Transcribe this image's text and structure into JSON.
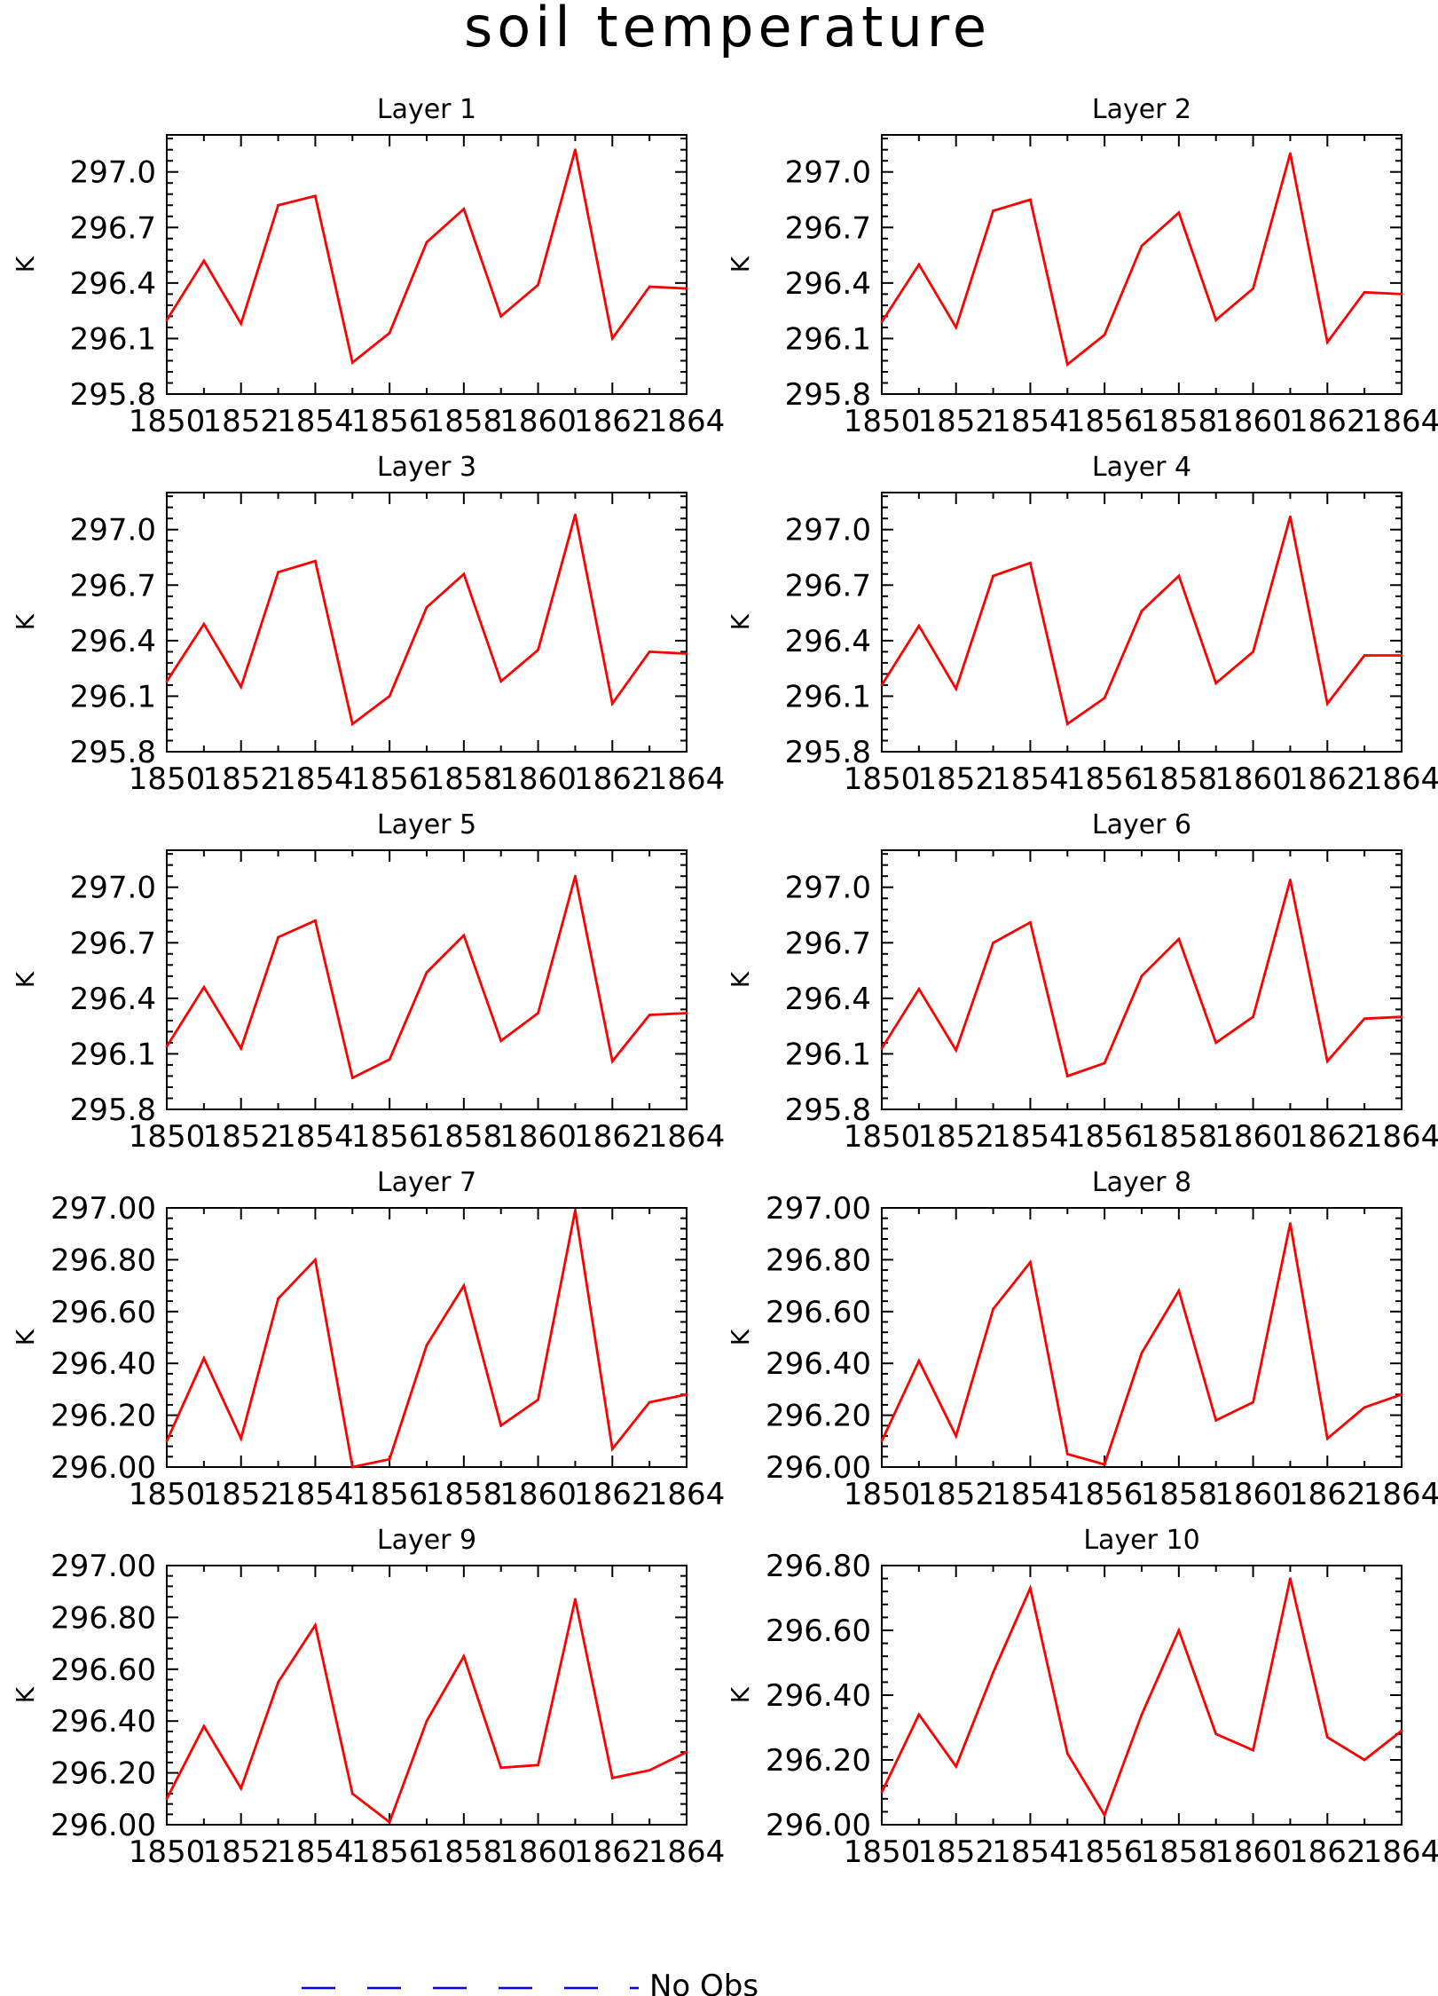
{
  "title": "soil temperature",
  "legend": {
    "label": "No Obs",
    "line_color": "#0000ff",
    "line_style": "dashed"
  },
  "colors": {
    "series": "#ff0000",
    "axes": "#000000"
  },
  "chart_data": [
    {
      "type": "line",
      "title": "Layer 1",
      "ylabel": "K",
      "x": [
        1850,
        1851,
        1852,
        1853,
        1854,
        1855,
        1856,
        1857,
        1858,
        1859,
        1860,
        1861,
        1862,
        1863,
        1864
      ],
      "xticks": [
        "1850",
        "1852",
        "1854",
        "1856",
        "1858",
        "1860",
        "1862",
        "1864"
      ],
      "xlim": [
        1850,
        1864
      ],
      "ylim": [
        295.8,
        297.2
      ],
      "yticks": [
        "295.8",
        "296.1",
        "296.4",
        "296.7",
        "297.0"
      ],
      "series": [
        {
          "values": [
            296.2,
            296.52,
            296.18,
            296.82,
            296.87,
            295.97,
            296.13,
            296.62,
            296.8,
            296.22,
            296.39,
            297.12,
            296.1,
            296.38,
            296.37
          ]
        }
      ]
    },
    {
      "type": "line",
      "title": "Layer 2",
      "ylabel": "K",
      "x": [
        1850,
        1851,
        1852,
        1853,
        1854,
        1855,
        1856,
        1857,
        1858,
        1859,
        1860,
        1861,
        1862,
        1863,
        1864
      ],
      "xticks": [
        "1850",
        "1852",
        "1854",
        "1856",
        "1858",
        "1860",
        "1862",
        "1864"
      ],
      "xlim": [
        1850,
        1864
      ],
      "ylim": [
        295.8,
        297.2
      ],
      "yticks": [
        "295.8",
        "296.1",
        "296.4",
        "296.7",
        "297.0"
      ],
      "series": [
        {
          "values": [
            296.19,
            296.5,
            296.16,
            296.79,
            296.85,
            295.96,
            296.12,
            296.6,
            296.78,
            296.2,
            296.37,
            297.1,
            296.08,
            296.35,
            296.34
          ]
        }
      ]
    },
    {
      "type": "line",
      "title": "Layer 3",
      "ylabel": "K",
      "x": [
        1850,
        1851,
        1852,
        1853,
        1854,
        1855,
        1856,
        1857,
        1858,
        1859,
        1860,
        1861,
        1862,
        1863,
        1864
      ],
      "xticks": [
        "1850",
        "1852",
        "1854",
        "1856",
        "1858",
        "1860",
        "1862",
        "1864"
      ],
      "xlim": [
        1850,
        1864
      ],
      "ylim": [
        295.8,
        297.2
      ],
      "yticks": [
        "295.8",
        "296.1",
        "296.4",
        "296.7",
        "297.0"
      ],
      "series": [
        {
          "values": [
            296.18,
            296.49,
            296.15,
            296.77,
            296.83,
            295.95,
            296.1,
            296.58,
            296.76,
            296.18,
            296.35,
            297.08,
            296.06,
            296.34,
            296.33
          ]
        }
      ]
    },
    {
      "type": "line",
      "title": "Layer 4",
      "ylabel": "K",
      "x": [
        1850,
        1851,
        1852,
        1853,
        1854,
        1855,
        1856,
        1857,
        1858,
        1859,
        1860,
        1861,
        1862,
        1863,
        1864
      ],
      "xticks": [
        "1850",
        "1852",
        "1854",
        "1856",
        "1858",
        "1860",
        "1862",
        "1864"
      ],
      "xlim": [
        1850,
        1864
      ],
      "ylim": [
        295.8,
        297.2
      ],
      "yticks": [
        "295.8",
        "296.1",
        "296.4",
        "296.7",
        "297.0"
      ],
      "series": [
        {
          "values": [
            296.16,
            296.48,
            296.14,
            296.75,
            296.82,
            295.95,
            296.09,
            296.56,
            296.75,
            296.17,
            296.34,
            297.07,
            296.06,
            296.32,
            296.32
          ]
        }
      ]
    },
    {
      "type": "line",
      "title": "Layer 5",
      "ylabel": "K",
      "x": [
        1850,
        1851,
        1852,
        1853,
        1854,
        1855,
        1856,
        1857,
        1858,
        1859,
        1860,
        1861,
        1862,
        1863,
        1864
      ],
      "xticks": [
        "1850",
        "1852",
        "1854",
        "1856",
        "1858",
        "1860",
        "1862",
        "1864"
      ],
      "xlim": [
        1850,
        1864
      ],
      "ylim": [
        295.8,
        297.2
      ],
      "yticks": [
        "295.8",
        "296.1",
        "296.4",
        "296.7",
        "297.0"
      ],
      "series": [
        {
          "values": [
            296.14,
            296.46,
            296.13,
            296.73,
            296.82,
            295.97,
            296.07,
            296.54,
            296.74,
            296.17,
            296.32,
            297.06,
            296.06,
            296.31,
            296.32
          ]
        }
      ]
    },
    {
      "type": "line",
      "title": "Layer 6",
      "ylabel": "K",
      "x": [
        1850,
        1851,
        1852,
        1853,
        1854,
        1855,
        1856,
        1857,
        1858,
        1859,
        1860,
        1861,
        1862,
        1863,
        1864
      ],
      "xticks": [
        "1850",
        "1852",
        "1854",
        "1856",
        "1858",
        "1860",
        "1862",
        "1864"
      ],
      "xlim": [
        1850,
        1864
      ],
      "ylim": [
        295.8,
        297.2
      ],
      "yticks": [
        "295.8",
        "296.1",
        "296.4",
        "296.7",
        "297.0"
      ],
      "series": [
        {
          "values": [
            296.13,
            296.45,
            296.12,
            296.7,
            296.81,
            295.98,
            296.05,
            296.52,
            296.72,
            296.16,
            296.3,
            297.04,
            296.06,
            296.29,
            296.3
          ]
        }
      ]
    },
    {
      "type": "line",
      "title": "Layer 7",
      "ylabel": "K",
      "x": [
        1850,
        1851,
        1852,
        1853,
        1854,
        1855,
        1856,
        1857,
        1858,
        1859,
        1860,
        1861,
        1862,
        1863,
        1864
      ],
      "xticks": [
        "1850",
        "1852",
        "1854",
        "1856",
        "1858",
        "1860",
        "1862",
        "1864"
      ],
      "xlim": [
        1850,
        1864
      ],
      "ylim": [
        296.0,
        297.0
      ],
      "yticks": [
        "296.00",
        "296.20",
        "296.40",
        "296.60",
        "296.80",
        "297.00"
      ],
      "series": [
        {
          "values": [
            296.1,
            296.42,
            296.11,
            296.65,
            296.8,
            296.0,
            296.03,
            296.47,
            296.7,
            296.16,
            296.26,
            296.99,
            296.07,
            296.25,
            296.28
          ]
        }
      ]
    },
    {
      "type": "line",
      "title": "Layer 8",
      "ylabel": "K",
      "x": [
        1850,
        1851,
        1852,
        1853,
        1854,
        1855,
        1856,
        1857,
        1858,
        1859,
        1860,
        1861,
        1862,
        1863,
        1864
      ],
      "xticks": [
        "1850",
        "1852",
        "1854",
        "1856",
        "1858",
        "1860",
        "1862",
        "1864"
      ],
      "xlim": [
        1850,
        1864
      ],
      "ylim": [
        296.0,
        297.0
      ],
      "yticks": [
        "296.00",
        "296.20",
        "296.40",
        "296.60",
        "296.80",
        "297.00"
      ],
      "series": [
        {
          "values": [
            296.1,
            296.41,
            296.12,
            296.61,
            296.79,
            296.05,
            296.01,
            296.44,
            296.68,
            296.18,
            296.25,
            296.94,
            296.11,
            296.23,
            296.28
          ]
        }
      ]
    },
    {
      "type": "line",
      "title": "Layer 9",
      "ylabel": "K",
      "x": [
        1850,
        1851,
        1852,
        1853,
        1854,
        1855,
        1856,
        1857,
        1858,
        1859,
        1860,
        1861,
        1862,
        1863,
        1864
      ],
      "xticks": [
        "1850",
        "1852",
        "1854",
        "1856",
        "1858",
        "1860",
        "1862",
        "1864"
      ],
      "xlim": [
        1850,
        1864
      ],
      "ylim": [
        296.0,
        297.0
      ],
      "yticks": [
        "296.00",
        "296.20",
        "296.40",
        "296.60",
        "296.80",
        "297.00"
      ],
      "series": [
        {
          "values": [
            296.1,
            296.38,
            296.14,
            296.55,
            296.77,
            296.12,
            296.01,
            296.4,
            296.65,
            296.22,
            296.23,
            296.87,
            296.18,
            296.21,
            296.28
          ]
        }
      ]
    },
    {
      "type": "line",
      "title": "Layer 10",
      "ylabel": "K",
      "x": [
        1850,
        1851,
        1852,
        1853,
        1854,
        1855,
        1856,
        1857,
        1858,
        1859,
        1860,
        1861,
        1862,
        1863,
        1864
      ],
      "xticks": [
        "1850",
        "1852",
        "1854",
        "1856",
        "1858",
        "1860",
        "1862",
        "1864"
      ],
      "xlim": [
        1850,
        1864
      ],
      "ylim": [
        296.0,
        296.8
      ],
      "yticks": [
        "296.00",
        "296.20",
        "296.40",
        "296.60",
        "296.80"
      ],
      "series": [
        {
          "values": [
            296.1,
            296.34,
            296.18,
            296.47,
            296.73,
            296.22,
            296.03,
            296.34,
            296.6,
            296.28,
            296.23,
            296.76,
            296.27,
            296.2,
            296.29
          ]
        }
      ]
    }
  ]
}
